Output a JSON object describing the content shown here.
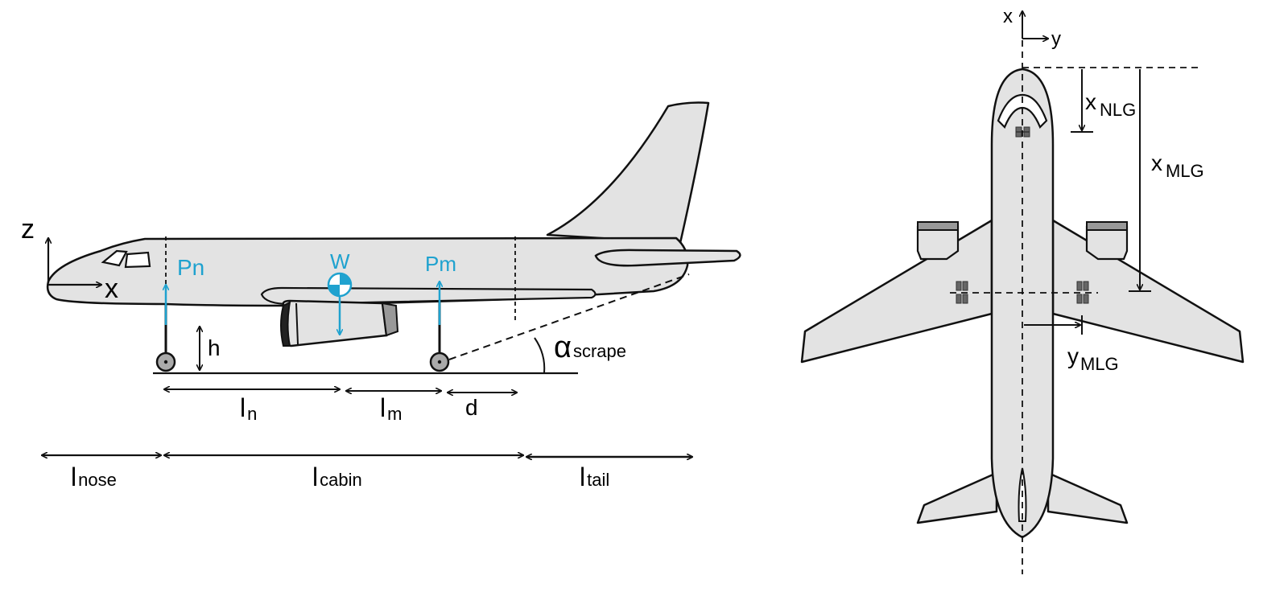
{
  "side_view": {
    "axes": {
      "z": "z",
      "x": "x"
    },
    "forces": {
      "nose": "Pn",
      "weight": "W",
      "main": "Pm"
    },
    "height": "h",
    "angle": {
      "symbol": "α",
      "subscript": "scrape"
    },
    "distances": {
      "ln": {
        "main": "l",
        "sub": "n"
      },
      "lm": {
        "main": "l",
        "sub": "m"
      },
      "d": "d"
    },
    "sections": {
      "nose": {
        "main": "l",
        "sub": "nose"
      },
      "cabin": {
        "main": "l",
        "sub": "cabin"
      },
      "tail": {
        "main": "l",
        "sub": "tail"
      }
    }
  },
  "top_view": {
    "axes": {
      "x": "x",
      "y": "y"
    },
    "dims": {
      "xnlg": {
        "main": "x",
        "sub": "NLG"
      },
      "xmlg": {
        "main": "x",
        "sub": "MLG"
      },
      "ymlg": {
        "main": "y",
        "sub": "MLG"
      }
    }
  },
  "colors": {
    "force": "#1fa2cf",
    "body": "#e3e3e3",
    "line": "#111111"
  }
}
